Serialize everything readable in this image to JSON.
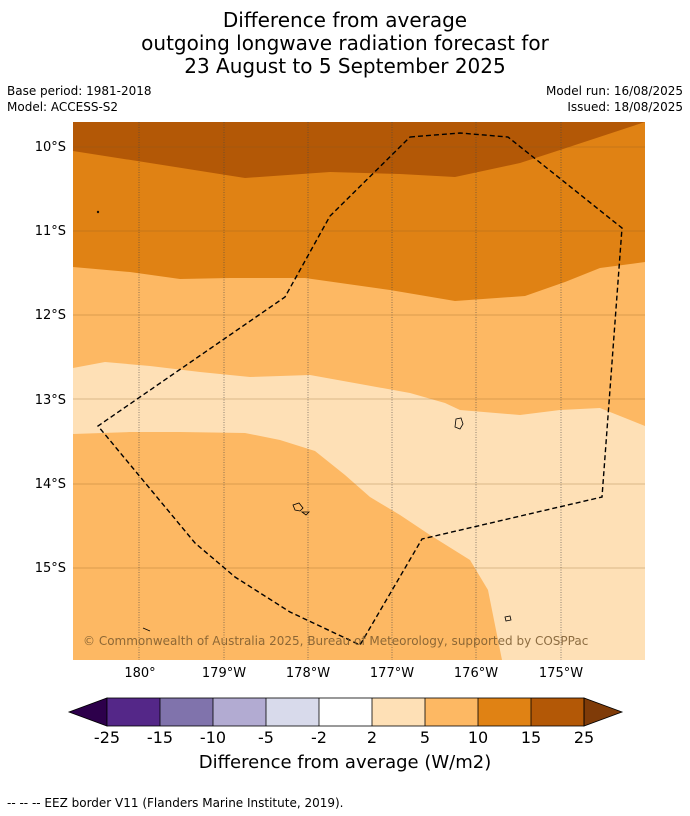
{
  "title": {
    "line1": "Difference from average",
    "line2": "outgoing longwave radiation forecast for",
    "line3": "23 August to 5 September 2025"
  },
  "meta": {
    "base_period": "Base period: 1981-2018",
    "model": "Model: ACCESS-S2",
    "model_run": "Model run: 16/08/2025",
    "issued": "Issued: 18/08/2025"
  },
  "map": {
    "lat_labels": [
      "10°S",
      "11°S",
      "12°S",
      "13°S",
      "14°S",
      "15°S"
    ],
    "lon_labels": [
      "180°",
      "179°W",
      "178°W",
      "177°W",
      "176°W",
      "175°W"
    ],
    "copyright": "© Commonwealth of Australia 2025, Bureau of Meteorology, supported by COSPPac",
    "colors": {
      "bin_15_25": "#b35806",
      "bin_10_15": "#e08214",
      "bin_5_10": "#fdb863",
      "bin_2_5": "#fee0b6"
    }
  },
  "colorbar": {
    "ticks": [
      "-25",
      "-15",
      "-10",
      "-5",
      "-2",
      "2",
      "5",
      "10",
      "15",
      "25"
    ],
    "colors": [
      "#2d004b",
      "#542788",
      "#8073ac",
      "#b2abd2",
      "#d8daeb",
      "#ffffff",
      "#fee0b6",
      "#fdb863",
      "#e08214",
      "#b35806",
      "#7f3b08"
    ],
    "label": "Difference from average (W/m2)"
  },
  "footnote": "--  --  -- EEZ border V11 (Flanders Marine Institute, 2019)."
}
